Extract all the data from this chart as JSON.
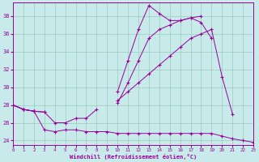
{
  "xlabel": "Windchill (Refroidissement éolien,°C)",
  "background_color": "#c8eaea",
  "line_color": "#990099",
  "grid_color": "#99ccbb",
  "xmin": 0,
  "xmax": 23,
  "ymin": 23.5,
  "ymax": 39.5,
  "yticks": [
    24,
    26,
    28,
    30,
    32,
    34,
    36,
    38
  ],
  "xtick_labels": [
    "0",
    "1",
    "2",
    "3",
    "4",
    "5",
    "6",
    "7",
    "8",
    "9",
    "10",
    "11",
    "12",
    "13",
    "14",
    "15",
    "16",
    "17",
    "18",
    "19",
    "20",
    "21",
    "22",
    "23"
  ],
  "lines": [
    {
      "x": [
        0,
        1,
        2,
        3,
        4,
        5,
        6,
        7,
        8,
        9,
        10,
        11,
        12,
        13,
        14,
        15,
        16,
        17,
        18,
        19,
        20,
        21,
        22,
        23
      ],
      "y": [
        28.0,
        27.5,
        27.3,
        null,
        null,
        null,
        null,
        null,
        null,
        null,
        29.5,
        33.0,
        36.5,
        39.2,
        38.3,
        37.5,
        37.5,
        37.8,
        37.3,
        35.5,
        null,
        null,
        null,
        null
      ]
    },
    {
      "x": [
        0,
        1,
        2,
        3,
        4,
        5,
        6,
        7,
        8,
        9,
        10,
        11,
        12,
        13,
        14,
        15,
        16,
        17,
        18,
        19,
        20,
        21,
        22,
        23
      ],
      "y": [
        28.0,
        27.5,
        27.3,
        27.2,
        null,
        null,
        null,
        null,
        null,
        null,
        28.2,
        30.5,
        33.0,
        35.5,
        36.5,
        37.0,
        37.5,
        37.8,
        38.0,
        null,
        null,
        null,
        null,
        null
      ]
    },
    {
      "x": [
        0,
        1,
        2,
        3,
        4,
        5,
        6,
        7,
        8,
        9,
        10,
        11,
        12,
        13,
        14,
        15,
        16,
        17,
        18,
        19,
        20,
        21,
        22,
        23
      ],
      "y": [
        28.0,
        27.5,
        27.3,
        27.2,
        26.0,
        26.0,
        26.5,
        26.5,
        27.5,
        null,
        28.5,
        29.5,
        30.5,
        31.5,
        32.5,
        33.5,
        34.5,
        35.5,
        36.0,
        36.5,
        31.2,
        27.0,
        null,
        null
      ]
    },
    {
      "x": [
        0,
        1,
        2,
        3,
        4,
        5,
        6,
        7,
        8,
        9,
        10,
        11,
        12,
        13,
        14,
        15,
        16,
        17,
        18,
        19,
        20,
        21,
        22,
        23
      ],
      "y": [
        28.0,
        27.5,
        27.3,
        25.2,
        25.0,
        25.2,
        25.2,
        25.0,
        25.0,
        25.0,
        24.8,
        24.8,
        24.8,
        24.8,
        24.8,
        24.8,
        24.8,
        24.8,
        24.8,
        24.8,
        24.5,
        24.2,
        24.0,
        23.8
      ]
    }
  ]
}
